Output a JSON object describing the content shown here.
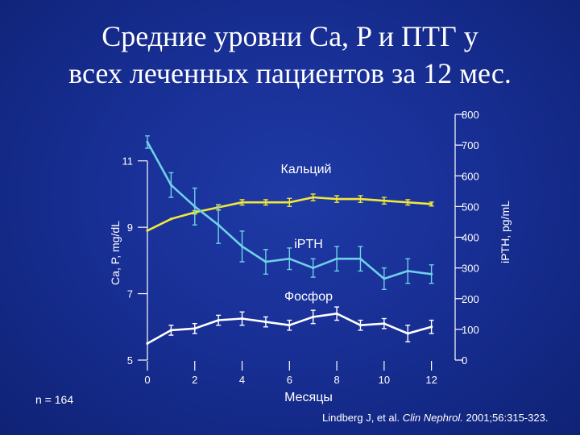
{
  "title_line1": "Средние уровни Ca, P и ПТГ у",
  "title_line2": "всех леченных пациентов за 12 мес.",
  "n_label": "n = 164",
  "citation": {
    "prefix": "Lindberg J, et al. ",
    "journal": "Clin Nephrol.",
    "suffix": " 2001;56:315-323."
  },
  "colors": {
    "background": "#1a3399",
    "calcium": "#f2e83a",
    "pth": "#6fd0e8",
    "phosphorus": "#ffffff",
    "axis": "#ffffff"
  },
  "chart_data": {
    "type": "line",
    "xlabel": "Месяцы",
    "ylabel_left": "Ca, P, mg/dL",
    "ylabel_right": "iPTH, pg/mL",
    "x_ticks": [
      0,
      2,
      4,
      6,
      8,
      10,
      12
    ],
    "y_left_ticks": [
      5,
      7,
      9,
      11
    ],
    "y_right_ticks": [
      0,
      100,
      200,
      300,
      400,
      500,
      600,
      700,
      800
    ],
    "xlim": [
      0,
      13
    ],
    "ylim_left": [
      5,
      12.4
    ],
    "ylim_right": [
      0,
      800
    ],
    "series": [
      {
        "name": "Кальций",
        "axis": "left",
        "color": "#f2e83a",
        "x": [
          0,
          1,
          2,
          3,
          4,
          5,
          6,
          7,
          8,
          9,
          10,
          11,
          12
        ],
        "y": [
          8.9,
          9.25,
          9.45,
          9.6,
          9.75,
          9.75,
          9.75,
          9.9,
          9.85,
          9.85,
          9.8,
          9.75,
          9.7
        ],
        "err": [
          0,
          0,
          0.05,
          0.08,
          0.08,
          0.08,
          0.12,
          0.1,
          0.1,
          0.1,
          0.1,
          0.08,
          0.06
        ]
      },
      {
        "name": "iPTH",
        "axis": "right",
        "color": "#6fd0e8",
        "x": [
          0,
          1,
          2,
          3,
          4,
          5,
          6,
          7,
          8,
          9,
          10,
          11,
          12
        ],
        "y": [
          710,
          570,
          500,
          440,
          370,
          320,
          330,
          300,
          330,
          330,
          265,
          290,
          280
        ],
        "err": [
          20,
          40,
          60,
          60,
          50,
          40,
          35,
          30,
          40,
          40,
          35,
          40,
          30
        ]
      },
      {
        "name": "Фосфор",
        "axis": "left",
        "color": "#ffffff",
        "x": [
          0,
          1,
          2,
          3,
          4,
          5,
          6,
          7,
          8,
          9,
          10,
          11,
          12
        ],
        "y": [
          5.5,
          5.9,
          5.95,
          6.2,
          6.25,
          6.15,
          6.05,
          6.3,
          6.4,
          6.05,
          6.1,
          5.8,
          6.0
        ],
        "err": [
          0,
          0.15,
          0.15,
          0.15,
          0.2,
          0.15,
          0.15,
          0.2,
          0.2,
          0.15,
          0.15,
          0.25,
          0.2
        ]
      }
    ],
    "annotations": [
      {
        "text": "Кальций",
        "series": "Кальций"
      },
      {
        "text": "iPTH",
        "series": "iPTH"
      },
      {
        "text": "Фосфор",
        "series": "Фосфор"
      }
    ]
  }
}
